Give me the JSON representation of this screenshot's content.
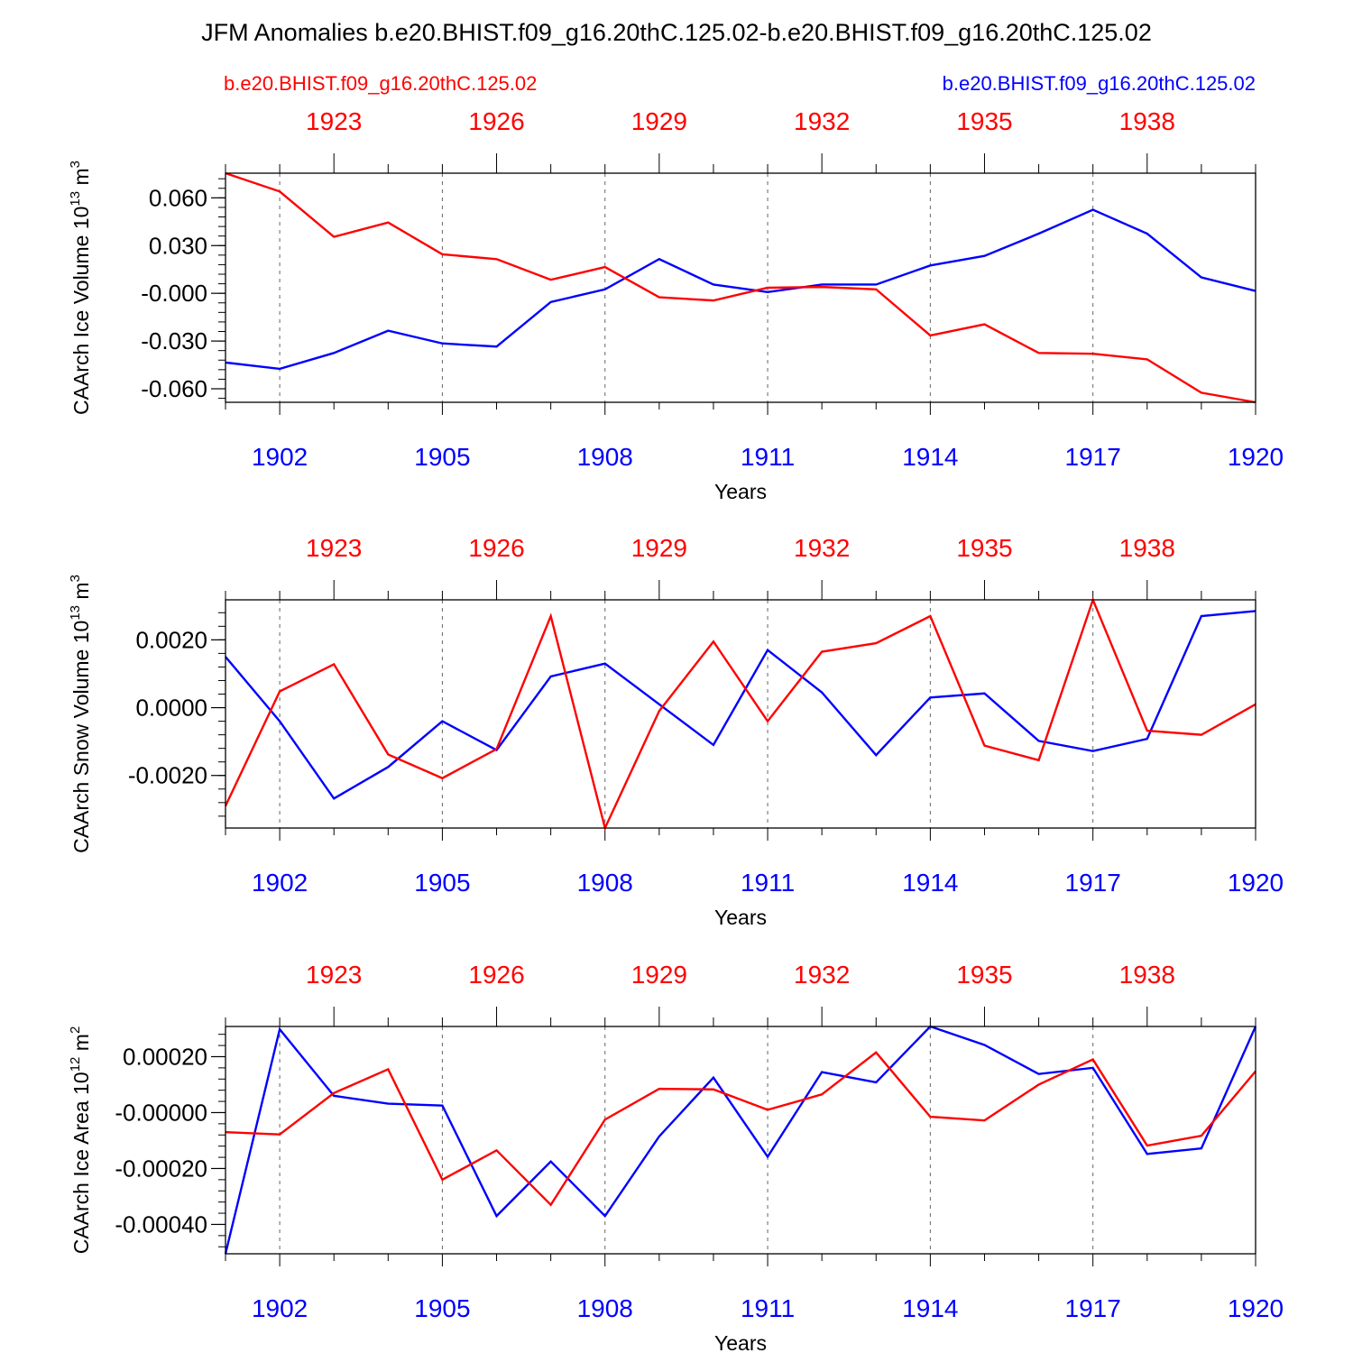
{
  "title": "JFM Anomalies b.e20.BHIST.f09_g16.20thC.125.02-b.e20.BHIST.f09_g16.20thC.125.02",
  "legend": {
    "left": "b.e20.BHIST.f09_g16.20thC.125.02",
    "right": "b.e20.BHIST.f09_g16.20thC.125.02",
    "left_color": "#ff0000",
    "right_color": "#0000ff"
  },
  "chart_data": [
    {
      "type": "line",
      "ylabel": "CAArch Ice Volume 10",
      "ylabel_exp": "13",
      "ylabel_unit": " m",
      "ylabel_unit_exp": "3",
      "xlabel": "Years",
      "ylim": [
        -0.0685,
        0.0755
      ],
      "yticks": [
        0.06,
        0.03,
        0.0,
        -0.03,
        -0.06
      ],
      "ytick_labels": [
        "0.060",
        "0.030",
        "-0.000",
        "-0.030",
        "-0.060"
      ],
      "yminor": 0.006,
      "x_bottom": [
        1901,
        1902,
        1903,
        1904,
        1905,
        1906,
        1907,
        1908,
        1909,
        1910,
        1911,
        1912,
        1913,
        1914,
        1915,
        1916,
        1917,
        1918,
        1919,
        1920
      ],
      "series": [
        {
          "name": "b.e20.BHIST.f09_g16.20thC.125.02 (1921-1940)",
          "color": "#ff0000",
          "values": [
            0.0755,
            0.064,
            0.0355,
            0.0445,
            0.0245,
            0.0215,
            0.0085,
            0.0165,
            -0.0025,
            -0.0045,
            0.0035,
            0.004,
            0.0025,
            -0.0265,
            -0.0195,
            -0.0375,
            -0.038,
            -0.0415,
            -0.0625,
            -0.0685
          ]
        },
        {
          "name": "b.e20.BHIST.f09_g16.20thC.125.02 (1901-1920)",
          "color": "#0000ff",
          "values": [
            -0.0435,
            -0.0475,
            -0.0375,
            -0.0235,
            -0.0315,
            -0.0335,
            -0.0055,
            0.0025,
            0.0215,
            0.0055,
            0.0008,
            0.0055,
            0.0055,
            0.0175,
            0.0235,
            0.0375,
            0.0525,
            0.0375,
            0.01,
            0.0015
          ]
        }
      ]
    },
    {
      "type": "line",
      "ylabel": "CAArch Snow Volume 10",
      "ylabel_exp": "13",
      "ylabel_unit": " m",
      "ylabel_unit_exp": "3",
      "xlabel": "Years",
      "ylim": [
        -0.00355,
        0.00318
      ],
      "yticks": [
        0.002,
        0.0,
        -0.002
      ],
      "ytick_labels": [
        "0.0020",
        "0.0000",
        "-0.0020"
      ],
      "yminor": 0.0004,
      "x_bottom": [
        1901,
        1902,
        1903,
        1904,
        1905,
        1906,
        1907,
        1908,
        1909,
        1910,
        1911,
        1912,
        1913,
        1914,
        1915,
        1916,
        1917,
        1918,
        1919,
        1920
      ],
      "series": [
        {
          "name": "b.e20.BHIST.f09_g16.20thC.125.02 (1921-1940)",
          "color": "#ff0000",
          "values": [
            -0.0029,
            0.00048,
            0.00128,
            -0.00138,
            -0.00208,
            -0.00122,
            0.0027,
            -0.00355,
            -0.0001,
            0.00195,
            -0.0004,
            0.00165,
            0.0019,
            0.0027,
            -0.00112,
            -0.00155,
            0.00318,
            -0.00068,
            -0.0008,
            0.0001
          ]
        },
        {
          "name": "b.e20.BHIST.f09_g16.20thC.125.02 (1901-1920)",
          "color": "#0000ff",
          "values": [
            0.0015,
            -0.0004,
            -0.00268,
            -0.00175,
            -0.0004,
            -0.00125,
            0.00092,
            0.0013,
            0.0001,
            -0.0011,
            0.0017,
            0.00045,
            -0.0014,
            0.0003,
            0.00042,
            -0.00098,
            -0.00128,
            -0.00092,
            0.0027,
            0.00285
          ]
        }
      ]
    },
    {
      "type": "line",
      "ylabel": "CAArch Ice Area 10",
      "ylabel_exp": "12",
      "ylabel_unit": " m",
      "ylabel_unit_exp": "2",
      "xlabel": "Years",
      "ylim": [
        -0.000505,
        0.000308
      ],
      "yticks": [
        0.0002,
        0.0,
        -0.0002,
        -0.0004
      ],
      "ytick_labels": [
        "0.00020",
        "-0.00000",
        "-0.00020",
        "-0.00040"
      ],
      "yminor": 4e-05,
      "x_bottom": [
        1901,
        1902,
        1903,
        1904,
        1905,
        1906,
        1907,
        1908,
        1909,
        1910,
        1911,
        1912,
        1913,
        1914,
        1915,
        1916,
        1917,
        1918,
        1919,
        1920
      ],
      "series": [
        {
          "name": "b.e20.BHIST.f09_g16.20thC.125.02 (1921-1940)",
          "color": "#ff0000",
          "values": [
            -7e-05,
            -7.8e-05,
            7e-05,
            0.000155,
            -0.00024,
            -0.000135,
            -0.00033,
            -2.5e-05,
            8.5e-05,
            8.3e-05,
            1e-05,
            6.5e-05,
            0.000215,
            -1.5e-05,
            -2.8e-05,
            0.0001,
            0.00019,
            -0.000118,
            -8.3e-05,
            0.000148
          ]
        },
        {
          "name": "b.e20.BHIST.f09_g16.20thC.125.02 (1901-1920)",
          "color": "#0000ff",
          "values": [
            -0.000505,
            0.000298,
            6e-05,
            3.2e-05,
            2.5e-05,
            -0.00037,
            -0.000175,
            -0.00037,
            -8.5e-05,
            0.000125,
            -0.000158,
            0.000145,
            0.000108,
            0.000308,
            0.000242,
            0.000138,
            0.00016,
            -0.000148,
            -0.000128,
            0.000308
          ]
        }
      ]
    }
  ],
  "x_top_labels": [
    "1923",
    "1926",
    "1929",
    "1932",
    "1935",
    "1938"
  ],
  "x_bottom_labels": [
    "1902",
    "1905",
    "1908",
    "1911",
    "1914",
    "1917",
    "1920"
  ]
}
